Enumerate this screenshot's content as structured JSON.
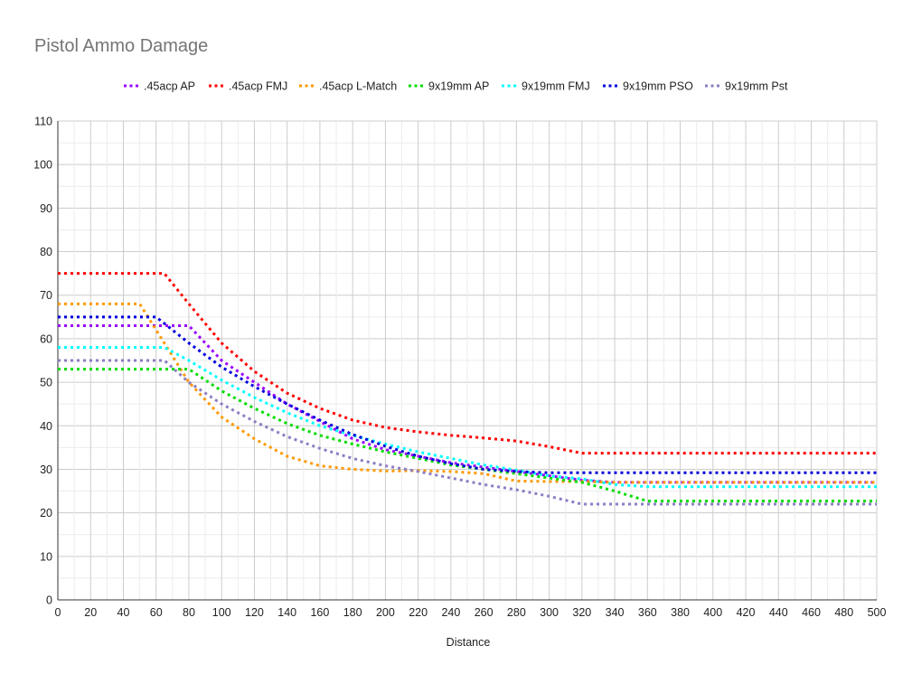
{
  "chart_data": {
    "type": "line",
    "title": "Pistol Ammo Damage",
    "xlabel": "Distance",
    "ylabel": "",
    "xlim": [
      0,
      500
    ],
    "ylim": [
      0,
      110
    ],
    "x_ticks": [
      0,
      20,
      40,
      60,
      80,
      100,
      120,
      140,
      160,
      180,
      200,
      220,
      240,
      260,
      280,
      300,
      320,
      340,
      360,
      380,
      400,
      420,
      440,
      460,
      480,
      500
    ],
    "y_ticks": [
      0,
      10,
      20,
      30,
      40,
      50,
      60,
      70,
      80,
      90,
      100,
      110
    ],
    "grid": true,
    "legend_position": "top",
    "series": [
      {
        "name": ".45acp AP",
        "color": "#9900ff",
        "points": [
          [
            0,
            63
          ],
          [
            80,
            63
          ],
          [
            100,
            55
          ],
          [
            120,
            50
          ],
          [
            140,
            45
          ],
          [
            160,
            41
          ],
          [
            180,
            37
          ],
          [
            200,
            34.5
          ],
          [
            220,
            33
          ],
          [
            240,
            31.5
          ],
          [
            260,
            30.5
          ],
          [
            280,
            29.5
          ],
          [
            300,
            28.5
          ],
          [
            320,
            27.5
          ],
          [
            340,
            27
          ],
          [
            500,
            27
          ]
        ]
      },
      {
        "name": ".45acp FMJ",
        "color": "#ff0000",
        "points": [
          [
            0,
            75
          ],
          [
            65,
            75
          ],
          [
            80,
            68
          ],
          [
            100,
            59
          ],
          [
            120,
            52.5
          ],
          [
            140,
            47.5
          ],
          [
            160,
            44
          ],
          [
            180,
            41.3
          ],
          [
            200,
            39.6
          ],
          [
            220,
            38.6
          ],
          [
            240,
            37.8
          ],
          [
            260,
            37.2
          ],
          [
            280,
            36.5
          ],
          [
            300,
            35.2
          ],
          [
            320,
            33.7
          ],
          [
            500,
            33.7
          ]
        ]
      },
      {
        "name": ".45acp L-Match",
        "color": "#ff9900",
        "points": [
          [
            0,
            68
          ],
          [
            50,
            68
          ],
          [
            60,
            62
          ],
          [
            80,
            50
          ],
          [
            100,
            42
          ],
          [
            120,
            37
          ],
          [
            140,
            33
          ],
          [
            160,
            30.8
          ],
          [
            180,
            30
          ],
          [
            200,
            29.6
          ],
          [
            220,
            29.7
          ],
          [
            240,
            29.5
          ],
          [
            260,
            29
          ],
          [
            280,
            27.3
          ],
          [
            300,
            27.2
          ],
          [
            320,
            27.2
          ],
          [
            340,
            27
          ],
          [
            500,
            27
          ]
        ]
      },
      {
        "name": "9x19mm AP",
        "color": "#00dd00",
        "points": [
          [
            0,
            53
          ],
          [
            80,
            53
          ],
          [
            100,
            48
          ],
          [
            120,
            44
          ],
          [
            140,
            40.5
          ],
          [
            160,
            37.8
          ],
          [
            180,
            35.8
          ],
          [
            200,
            34
          ],
          [
            220,
            32.5
          ],
          [
            240,
            31
          ],
          [
            260,
            30
          ],
          [
            280,
            29
          ],
          [
            300,
            28
          ],
          [
            320,
            27
          ],
          [
            340,
            25
          ],
          [
            360,
            22.7
          ],
          [
            500,
            22.7
          ]
        ]
      },
      {
        "name": "9x19mm FMJ",
        "color": "#00ffff",
        "points": [
          [
            0,
            58
          ],
          [
            65,
            58
          ],
          [
            80,
            55
          ],
          [
            100,
            50.5
          ],
          [
            120,
            46.5
          ],
          [
            140,
            43
          ],
          [
            160,
            40
          ],
          [
            180,
            37.8
          ],
          [
            200,
            35.8
          ],
          [
            220,
            34
          ],
          [
            240,
            32.5
          ],
          [
            260,
            31
          ],
          [
            280,
            29.8
          ],
          [
            300,
            28.5
          ],
          [
            320,
            27.8
          ],
          [
            340,
            26.5
          ],
          [
            360,
            26
          ],
          [
            500,
            26
          ]
        ]
      },
      {
        "name": "9x19mm PSO",
        "color": "#0000dd",
        "points": [
          [
            0,
            65
          ],
          [
            60,
            65
          ],
          [
            80,
            59
          ],
          [
            100,
            53.5
          ],
          [
            120,
            49
          ],
          [
            140,
            45
          ],
          [
            160,
            41.3
          ],
          [
            180,
            38
          ],
          [
            200,
            35.3
          ],
          [
            220,
            33
          ],
          [
            240,
            31.3
          ],
          [
            260,
            30
          ],
          [
            280,
            29.5
          ],
          [
            300,
            29.2
          ],
          [
            320,
            29.2
          ],
          [
            500,
            29.2
          ]
        ]
      },
      {
        "name": "9x19mm Pst",
        "color": "#8e7cc3",
        "points": [
          [
            0,
            55
          ],
          [
            65,
            55
          ],
          [
            80,
            50
          ],
          [
            100,
            45
          ],
          [
            120,
            41
          ],
          [
            140,
            37.5
          ],
          [
            160,
            34.8
          ],
          [
            180,
            32.5
          ],
          [
            200,
            30.8
          ],
          [
            220,
            29.5
          ],
          [
            240,
            28
          ],
          [
            260,
            26.5
          ],
          [
            280,
            25.3
          ],
          [
            300,
            23.8
          ],
          [
            320,
            22
          ],
          [
            500,
            22
          ]
        ]
      }
    ]
  }
}
